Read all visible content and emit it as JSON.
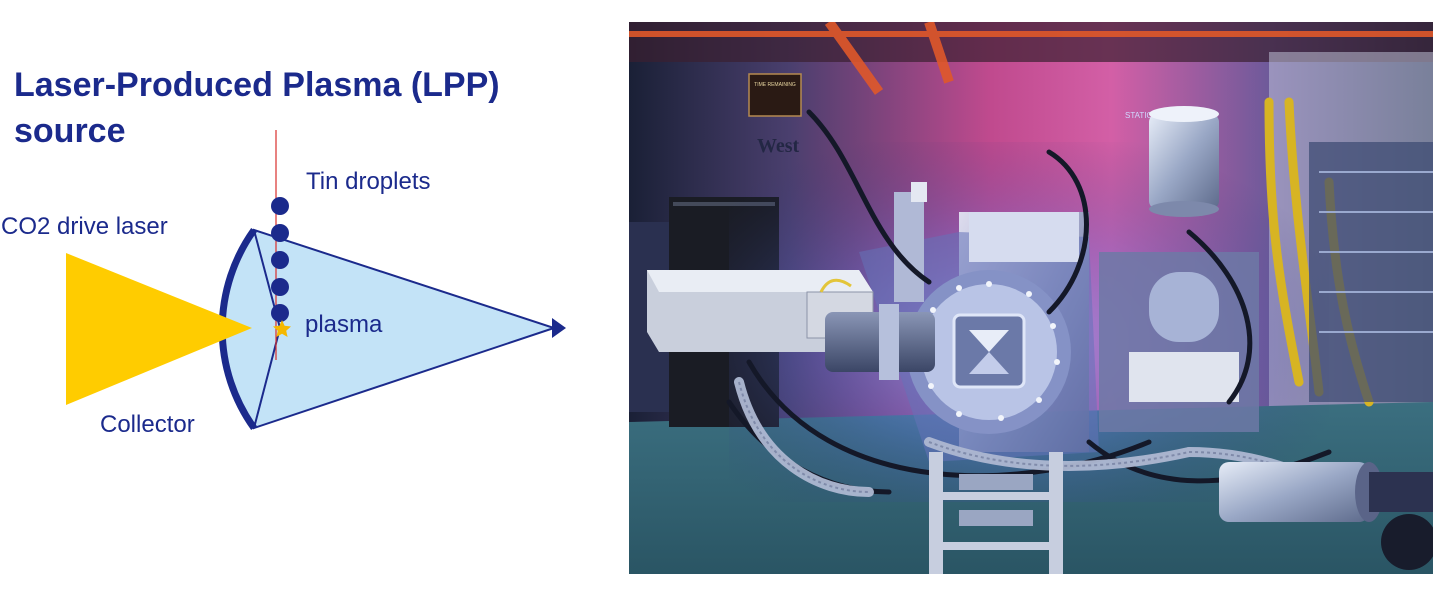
{
  "title": {
    "line1": "Laser-Produced Plasma (LPP)",
    "line2": "source"
  },
  "diagram": {
    "labels": {
      "tin_droplets": "Tin droplets",
      "laser": "CO2 drive laser",
      "plasma": "plasma",
      "collector": "Collector"
    },
    "colors": {
      "text": "#1b2a8c",
      "laser": "#ffcc00",
      "beam_fill": "#c3e3f7",
      "beam_stroke": "#1b2a8c",
      "droplet": "#1b2a8c",
      "droplet_trajectory": "#d9302c",
      "plasma_star": "#f5b800"
    },
    "droplet_count": 5
  },
  "photo": {
    "sign_west": "West",
    "sign_station": "STATION",
    "sign_plaque": "TIME REMAINING"
  }
}
